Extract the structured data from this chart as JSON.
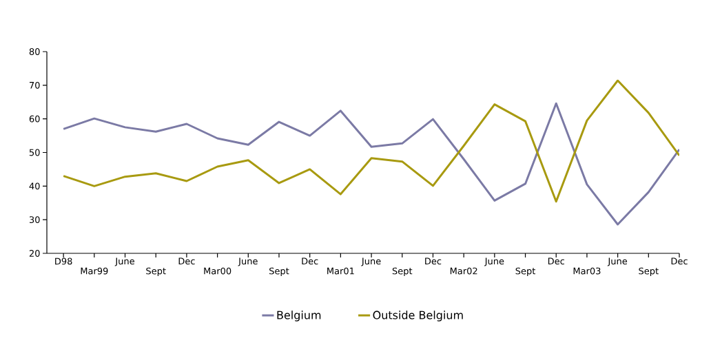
{
  "chart_data": {
    "type": "line",
    "categories": [
      "D98",
      "Mar99",
      "June",
      "Sept",
      "Dec",
      "Mar00",
      "June",
      "Sept",
      "Dec",
      "Mar01",
      "June",
      "Sept",
      "Dec",
      "Mar02",
      "June",
      "Sept",
      "Dec",
      "Mar03",
      "June",
      "Sept",
      "Dec"
    ],
    "series": [
      {
        "name": "Belgium",
        "color": "#7b7aa5",
        "values": [
          57.0,
          60.1,
          57.5,
          56.2,
          58.5,
          54.2,
          52.3,
          59.1,
          55.0,
          62.4,
          51.7,
          52.7,
          59.9,
          48,
          35.7,
          40.7,
          64.6,
          40.5,
          28.6,
          38.2,
          50.9
        ]
      },
      {
        "name": "Outside Belgium",
        "color": "#a89a10",
        "values": [
          43.0,
          40.0,
          42.8,
          43.8,
          41.5,
          45.8,
          47.7,
          40.9,
          45.0,
          37.6,
          48.3,
          47.3,
          40.1,
          52,
          64.3,
          59.3,
          35.4,
          59.5,
          71.4,
          61.8,
          49.1
        ]
      }
    ],
    "ylim": [
      20,
      80
    ],
    "yticks": [
      20,
      30,
      40,
      50,
      60,
      70,
      80
    ],
    "grid": false,
    "legend": "bottom",
    "marker": "none",
    "line_style": "solid"
  }
}
